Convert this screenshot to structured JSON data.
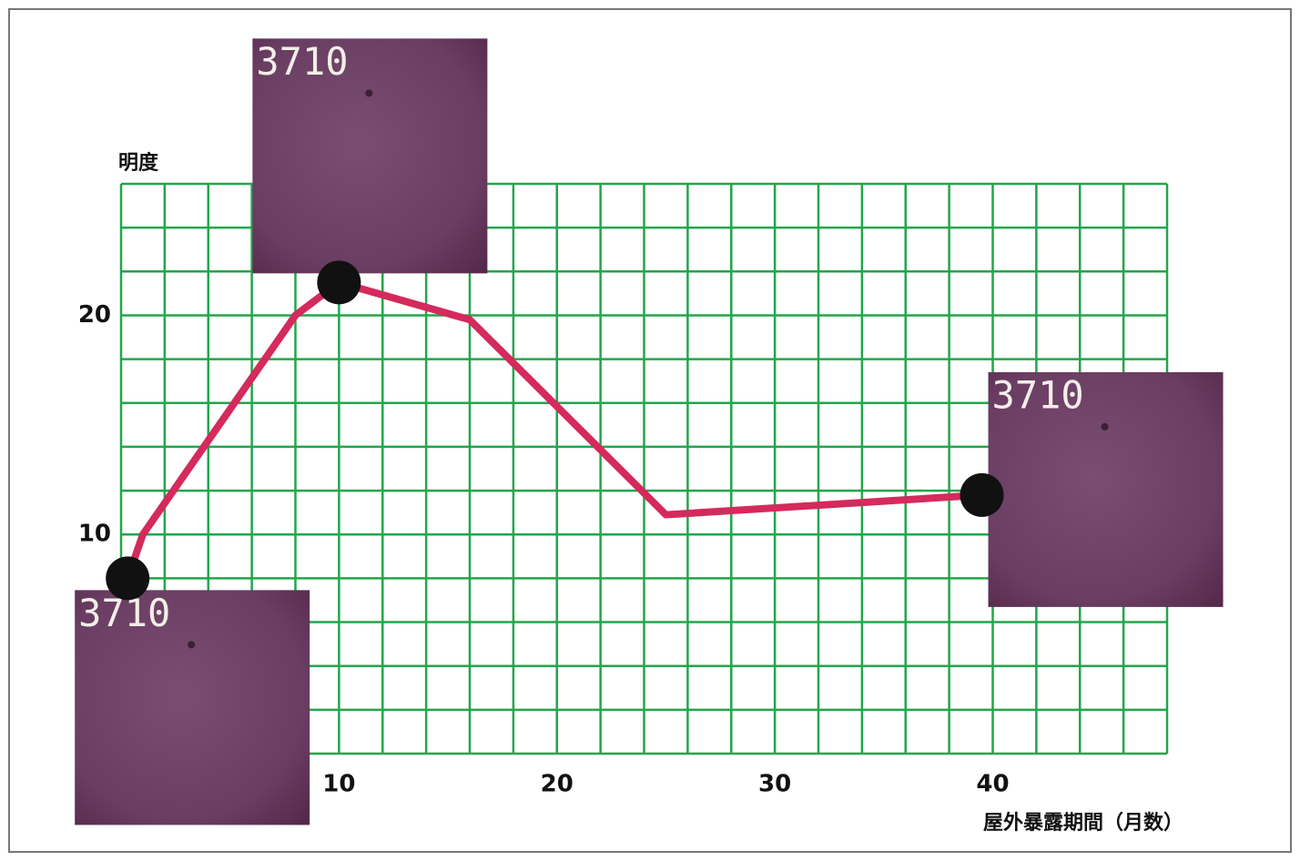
{
  "chart_data": {
    "type": "line",
    "y_label": "明度",
    "x_label": "屋外暴露期間（月数）",
    "x": [
      0.3,
      1,
      8,
      10,
      16,
      25,
      39.5
    ],
    "values": [
      8,
      10,
      20,
      21.5,
      19.8,
      10.9,
      11.8
    ],
    "color": "#d42a5c",
    "xlim": [
      0,
      48
    ],
    "xticks": [
      10,
      20,
      30,
      40
    ],
    "ylim": [
      0,
      26
    ],
    "yticks": [
      10,
      20
    ],
    "xgrid": [
      0,
      2,
      4,
      6,
      8,
      10,
      12,
      14,
      16,
      18,
      20,
      22,
      24,
      26,
      28,
      30,
      32,
      34,
      36,
      38,
      40,
      42,
      44,
      46,
      48
    ],
    "ygrid": [
      0,
      2,
      4,
      6,
      8,
      10,
      12,
      14,
      16,
      18,
      20,
      22,
      24,
      26
    ],
    "grid_color": "#22a64a",
    "annotations": [
      {
        "text": "3710",
        "x": 0.3,
        "y": 8
      },
      {
        "text": "3710",
        "x": 10,
        "y": 21.5
      },
      {
        "text": "3710",
        "x": 39.5,
        "y": 11.8
      }
    ]
  }
}
